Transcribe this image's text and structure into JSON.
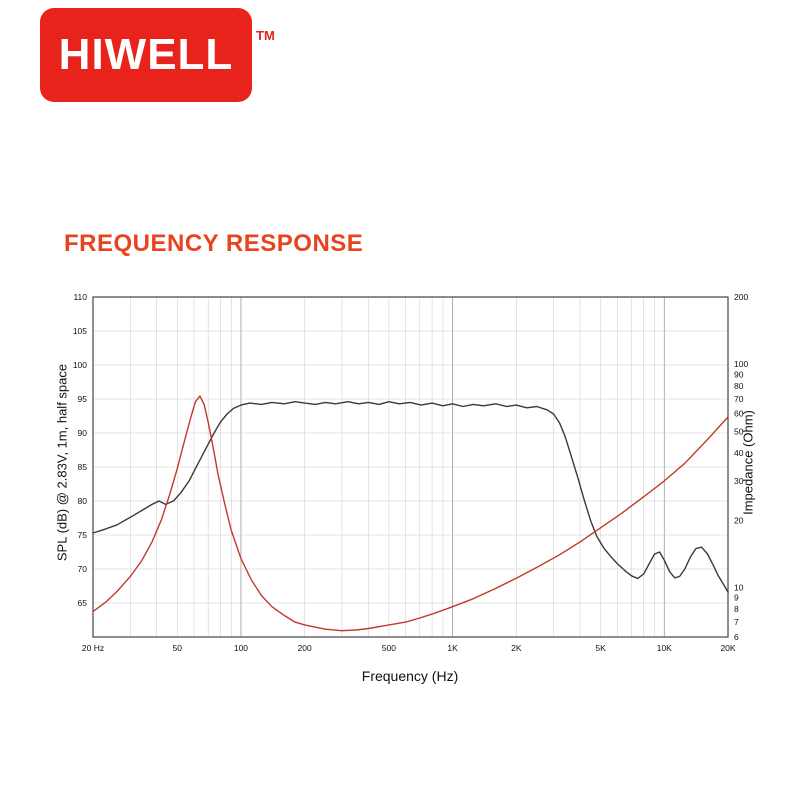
{
  "logo": {
    "text": "HIWELL",
    "tm": "TM",
    "color": "#e8231c"
  },
  "title": {
    "text": "FREQUENCY RESPONSE",
    "color": "#e8431f"
  },
  "chart_data": {
    "type": "line",
    "grid": true,
    "frame_color": "#444444",
    "grid_color": "#c9c9c9",
    "grid_major_color": "#9a9a9a",
    "x_axis": {
      "label": "Frequency (Hz)",
      "scale": "log",
      "min": 20,
      "max": 20000,
      "ticks": [
        {
          "f": 20,
          "label": "20 Hz"
        },
        {
          "f": 50,
          "label": "50"
        },
        {
          "f": 100,
          "label": "100"
        },
        {
          "f": 200,
          "label": "200"
        },
        {
          "f": 500,
          "label": "500"
        },
        {
          "f": 1000,
          "label": "1K"
        },
        {
          "f": 2000,
          "label": "2K"
        },
        {
          "f": 5000,
          "label": "5K"
        },
        {
          "f": 10000,
          "label": "10K"
        },
        {
          "f": 20000,
          "label": "20K"
        }
      ]
    },
    "y_left": {
      "label": "SPL (dB) @ 2.83V, 1m, half space",
      "scale": "linear",
      "min": 60,
      "max": 110,
      "ticks": [
        110,
        105,
        100,
        95,
        90,
        85,
        80,
        75,
        70,
        65
      ]
    },
    "y_right": {
      "label": "Impedance (Ohm)",
      "scale": "log",
      "min": 6,
      "max": 200,
      "ticks": [
        200,
        100,
        90,
        80,
        70,
        60,
        50,
        40,
        30,
        20,
        10,
        9,
        8,
        7,
        6
      ]
    },
    "series": [
      {
        "name": "SPL",
        "axis": "left",
        "color": "#3a3a3a",
        "width": 1.4,
        "points": [
          [
            20,
            75.3
          ],
          [
            23,
            75.9
          ],
          [
            26,
            76.5
          ],
          [
            30,
            77.6
          ],
          [
            34,
            78.6
          ],
          [
            38,
            79.5
          ],
          [
            41,
            80.0
          ],
          [
            44,
            79.5
          ],
          [
            48,
            80.0
          ],
          [
            52,
            81.2
          ],
          [
            57,
            83.0
          ],
          [
            62,
            85.2
          ],
          [
            68,
            87.6
          ],
          [
            74,
            89.8
          ],
          [
            80,
            91.6
          ],
          [
            86,
            92.8
          ],
          [
            92,
            93.6
          ],
          [
            100,
            94.1
          ],
          [
            110,
            94.4
          ],
          [
            125,
            94.2
          ],
          [
            140,
            94.5
          ],
          [
            160,
            94.3
          ],
          [
            180,
            94.6
          ],
          [
            200,
            94.4
          ],
          [
            225,
            94.2
          ],
          [
            250,
            94.5
          ],
          [
            280,
            94.3
          ],
          [
            320,
            94.6
          ],
          [
            360,
            94.3
          ],
          [
            400,
            94.5
          ],
          [
            450,
            94.2
          ],
          [
            500,
            94.6
          ],
          [
            560,
            94.3
          ],
          [
            630,
            94.5
          ],
          [
            710,
            94.1
          ],
          [
            800,
            94.4
          ],
          [
            900,
            94.0
          ],
          [
            1000,
            94.3
          ],
          [
            1120,
            93.9
          ],
          [
            1250,
            94.2
          ],
          [
            1400,
            94.0
          ],
          [
            1600,
            94.3
          ],
          [
            1800,
            93.9
          ],
          [
            2000,
            94.1
          ],
          [
            2240,
            93.7
          ],
          [
            2500,
            93.9
          ],
          [
            2800,
            93.4
          ],
          [
            3000,
            92.8
          ],
          [
            3200,
            91.5
          ],
          [
            3400,
            89.5
          ],
          [
            3600,
            87.0
          ],
          [
            3900,
            83.5
          ],
          [
            4200,
            80.0
          ],
          [
            4500,
            77.0
          ],
          [
            4800,
            74.8
          ],
          [
            5200,
            73.0
          ],
          [
            5600,
            71.8
          ],
          [
            6000,
            70.8
          ],
          [
            6500,
            69.8
          ],
          [
            7000,
            69.0
          ],
          [
            7500,
            68.6
          ],
          [
            8000,
            69.3
          ],
          [
            8500,
            70.8
          ],
          [
            9000,
            72.2
          ],
          [
            9500,
            72.5
          ],
          [
            10000,
            71.3
          ],
          [
            10600,
            69.6
          ],
          [
            11200,
            68.7
          ],
          [
            11800,
            68.9
          ],
          [
            12500,
            70.0
          ],
          [
            13300,
            71.8
          ],
          [
            14100,
            73.0
          ],
          [
            15000,
            73.2
          ],
          [
            16000,
            72.2
          ],
          [
            17000,
            70.6
          ],
          [
            18000,
            69.0
          ],
          [
            19000,
            67.8
          ],
          [
            20000,
            66.6
          ]
        ]
      },
      {
        "name": "Impedance",
        "axis": "right",
        "color": "#c03a2b",
        "width": 1.4,
        "points": [
          [
            20,
            7.8
          ],
          [
            23,
            8.6
          ],
          [
            26,
            9.6
          ],
          [
            30,
            11.2
          ],
          [
            34,
            13.2
          ],
          [
            38,
            16.0
          ],
          [
            42,
            20.0
          ],
          [
            46,
            26.0
          ],
          [
            50,
            34.0
          ],
          [
            54,
            45.0
          ],
          [
            58,
            58.0
          ],
          [
            61,
            68.0
          ],
          [
            64,
            72.0
          ],
          [
            67,
            66.0
          ],
          [
            70,
            55.0
          ],
          [
            74,
            42.0
          ],
          [
            78,
            32.0
          ],
          [
            84,
            23.5
          ],
          [
            90,
            18.0
          ],
          [
            100,
            13.5
          ],
          [
            112,
            10.8
          ],
          [
            125,
            9.2
          ],
          [
            140,
            8.2
          ],
          [
            160,
            7.5
          ],
          [
            180,
            7.0
          ],
          [
            200,
            6.8
          ],
          [
            250,
            6.5
          ],
          [
            300,
            6.4
          ],
          [
            350,
            6.45
          ],
          [
            400,
            6.55
          ],
          [
            500,
            6.8
          ],
          [
            600,
            7.0
          ],
          [
            700,
            7.3
          ],
          [
            800,
            7.6
          ],
          [
            1000,
            8.2
          ],
          [
            1250,
            8.9
          ],
          [
            1600,
            9.9
          ],
          [
            2000,
            11.0
          ],
          [
            2500,
            12.3
          ],
          [
            3200,
            14.0
          ],
          [
            4000,
            16.0
          ],
          [
            5000,
            18.5
          ],
          [
            6300,
            21.5
          ],
          [
            8000,
            25.5
          ],
          [
            10000,
            30.0
          ],
          [
            12500,
            36.0
          ],
          [
            16000,
            46.0
          ],
          [
            20000,
            58.0
          ]
        ]
      }
    ]
  }
}
